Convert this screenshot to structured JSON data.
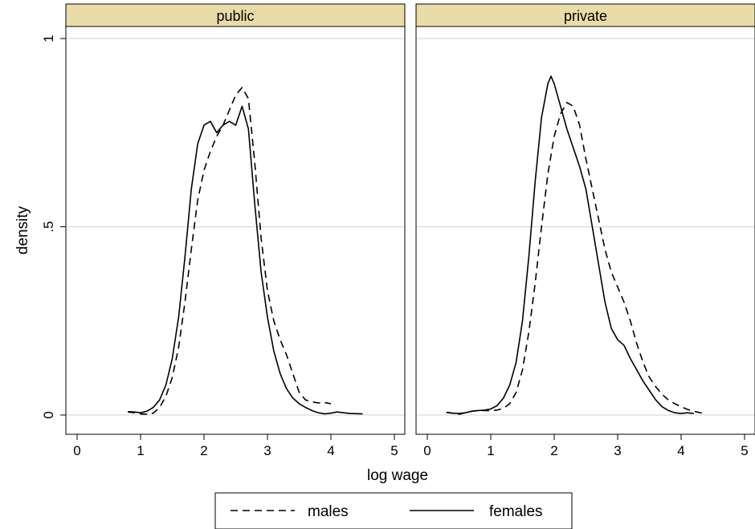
{
  "chart_data": {
    "type": "line",
    "ylabel": "density",
    "xlabel": "log wage",
    "xlim": [
      0,
      5
    ],
    "ylim": [
      0,
      1
    ],
    "x_ticks": [
      0,
      1,
      2,
      3,
      4,
      5
    ],
    "y_ticks": [
      0,
      0.5,
      1
    ],
    "y_tick_labels": [
      "0",
      ".5",
      "1"
    ],
    "grid": "horizontal",
    "legend_position": "bottom",
    "legend": [
      {
        "name": "males",
        "style": "dashed"
      },
      {
        "name": "females",
        "style": "solid"
      }
    ],
    "panels": [
      {
        "title": "public",
        "series": [
          {
            "name": "males",
            "style": "dashed",
            "x": [
              0.8,
              0.9,
              1.0,
              1.1,
              1.2,
              1.3,
              1.4,
              1.5,
              1.6,
              1.7,
              1.8,
              1.9,
              2.0,
              2.1,
              2.2,
              2.3,
              2.4,
              2.5,
              2.6,
              2.7,
              2.8,
              2.9,
              3.0,
              3.1,
              3.2,
              3.3,
              3.4,
              3.5,
              3.6,
              3.7,
              3.8,
              3.9,
              4.0
            ],
            "y": [
              0.008,
              0.006,
              0.003,
              0.002,
              0.005,
              0.02,
              0.05,
              0.1,
              0.18,
              0.3,
              0.44,
              0.57,
              0.65,
              0.7,
              0.74,
              0.77,
              0.81,
              0.85,
              0.87,
              0.84,
              0.67,
              0.47,
              0.33,
              0.25,
              0.2,
              0.16,
              0.11,
              0.06,
              0.04,
              0.035,
              0.032,
              0.033,
              0.03
            ]
          },
          {
            "name": "females",
            "style": "solid",
            "x": [
              0.8,
              0.9,
              1.0,
              1.1,
              1.2,
              1.3,
              1.4,
              1.5,
              1.6,
              1.7,
              1.8,
              1.9,
              2.0,
              2.1,
              2.2,
              2.3,
              2.4,
              2.5,
              2.6,
              2.7,
              2.8,
              2.9,
              3.0,
              3.1,
              3.2,
              3.3,
              3.4,
              3.5,
              3.6,
              3.7,
              3.8,
              3.9,
              4.0,
              4.1,
              4.2,
              4.3,
              4.5
            ],
            "y": [
              0.009,
              0.008,
              0.006,
              0.01,
              0.02,
              0.04,
              0.08,
              0.15,
              0.26,
              0.42,
              0.6,
              0.72,
              0.77,
              0.78,
              0.75,
              0.77,
              0.78,
              0.77,
              0.82,
              0.76,
              0.56,
              0.38,
              0.26,
              0.17,
              0.11,
              0.07,
              0.045,
              0.03,
              0.02,
              0.012,
              0.006,
              0.003,
              0.005,
              0.008,
              0.006,
              0.004,
              0.003
            ]
          }
        ]
      },
      {
        "title": "private",
        "series": [
          {
            "name": "males",
            "style": "dashed",
            "x": [
              0.3,
              0.4,
              0.5,
              0.6,
              0.7,
              0.8,
              0.9,
              1.0,
              1.1,
              1.2,
              1.3,
              1.4,
              1.5,
              1.6,
              1.7,
              1.8,
              1.9,
              2.0,
              2.1,
              2.2,
              2.3,
              2.4,
              2.5,
              2.6,
              2.7,
              2.8,
              2.9,
              3.0,
              3.1,
              3.2,
              3.3,
              3.4,
              3.5,
              3.6,
              3.7,
              3.8,
              3.9,
              4.0,
              4.1,
              4.2,
              4.3,
              4.4
            ],
            "y": [
              0.007,
              0.005,
              0.002,
              0.006,
              0.01,
              0.012,
              0.012,
              0.012,
              0.013,
              0.018,
              0.03,
              0.06,
              0.12,
              0.22,
              0.35,
              0.5,
              0.64,
              0.74,
              0.8,
              0.83,
              0.82,
              0.77,
              0.68,
              0.6,
              0.52,
              0.44,
              0.38,
              0.34,
              0.3,
              0.25,
              0.19,
              0.14,
              0.1,
              0.075,
              0.055,
              0.04,
              0.03,
              0.022,
              0.015,
              0.01,
              0.006,
              0.004
            ]
          },
          {
            "name": "females",
            "style": "solid",
            "x": [
              0.3,
              0.4,
              0.5,
              0.6,
              0.7,
              0.8,
              0.9,
              1.0,
              1.1,
              1.2,
              1.3,
              1.4,
              1.5,
              1.6,
              1.7,
              1.8,
              1.9,
              1.95,
              2.0,
              2.1,
              2.2,
              2.3,
              2.4,
              2.5,
              2.6,
              2.7,
              2.8,
              2.9,
              3.0,
              3.1,
              3.2,
              3.3,
              3.4,
              3.5,
              3.6,
              3.7,
              3.8,
              3.9,
              4.0,
              4.1,
              4.2
            ],
            "y": [
              0.007,
              0.005,
              0.004,
              0.006,
              0.01,
              0.012,
              0.013,
              0.016,
              0.025,
              0.045,
              0.08,
              0.14,
              0.25,
              0.42,
              0.62,
              0.79,
              0.88,
              0.9,
              0.88,
              0.82,
              0.76,
              0.71,
              0.66,
              0.6,
              0.5,
              0.4,
              0.3,
              0.23,
              0.2,
              0.185,
              0.15,
              0.12,
              0.09,
              0.065,
              0.04,
              0.022,
              0.012,
              0.006,
              0.004,
              0.006,
              0.004
            ]
          }
        ]
      }
    ]
  }
}
